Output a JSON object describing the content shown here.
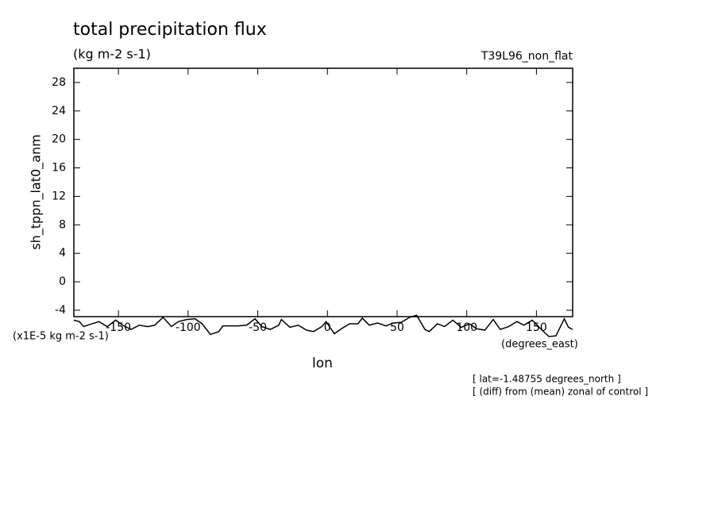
{
  "chart_data": {
    "type": "line",
    "title": "total precipitation flux",
    "subtitle": "(kg m-2 s-1)",
    "dataset_label": "T39L96_non_flat",
    "y_label": "sh_tppn_lat0_anm",
    "y_units": "(x1E-5 kg m-2 s-1)",
    "x_label": "lon",
    "x_units": "(degrees_east)",
    "annotations": [
      "[ lat=-1.48755 degrees_north ]",
      "[ (diff) from (mean) zonal of control ]"
    ],
    "color": "#000000",
    "x": [
      -182,
      -178,
      -175,
      -169,
      -164,
      -158,
      -152,
      -147,
      -141,
      -135,
      -129,
      -124,
      -118,
      -112,
      -107,
      -101,
      -95,
      -90,
      -84,
      -78,
      -75,
      -70,
      -64,
      -58,
      -52,
      -47,
      -41,
      -35,
      -33,
      -27,
      -21,
      -15,
      -10,
      -4,
      -1,
      5,
      10,
      16,
      22,
      25,
      30,
      36,
      42,
      47,
      53,
      59,
      64,
      70,
      73,
      79,
      84,
      90,
      96,
      102,
      107,
      113,
      119,
      124,
      130,
      136,
      141,
      147,
      153,
      159,
      164,
      170,
      173,
      176
    ],
    "values": [
      -5.4,
      -5.6,
      -6.3,
      -5.9,
      -5.6,
      -6.3,
      -5.4,
      -6.1,
      -6.7,
      -6.1,
      -6.3,
      -6.1,
      -5.0,
      -6.3,
      -5.6,
      -5.3,
      -5.2,
      -5.9,
      -7.4,
      -7.0,
      -6.2,
      -6.2,
      -6.2,
      -6.1,
      -5.2,
      -6.3,
      -6.7,
      -6.1,
      -5.3,
      -6.4,
      -6.1,
      -6.8,
      -7.0,
      -6.3,
      -5.6,
      -7.3,
      -6.6,
      -5.9,
      -5.9,
      -5.1,
      -6.1,
      -5.8,
      -6.2,
      -5.8,
      -5.7,
      -5.0,
      -4.7,
      -6.7,
      -7.0,
      -5.9,
      -6.3,
      -5.4,
      -6.4,
      -5.9,
      -6.6,
      -6.8,
      -5.3,
      -6.7,
      -6.3,
      -5.6,
      -6.1,
      -5.4,
      -6.6,
      -7.7,
      -7.6,
      -5.2,
      -6.4,
      -6.7
    ],
    "xlim": [
      -182,
      176
    ],
    "xticks": [
      -150,
      -100,
      -50,
      0,
      50,
      100,
      150
    ],
    "ylim": [
      -4.9,
      30
    ],
    "yticks": [
      -4,
      0,
      4,
      8,
      12,
      16,
      20,
      24,
      28
    ],
    "grid": false
  }
}
